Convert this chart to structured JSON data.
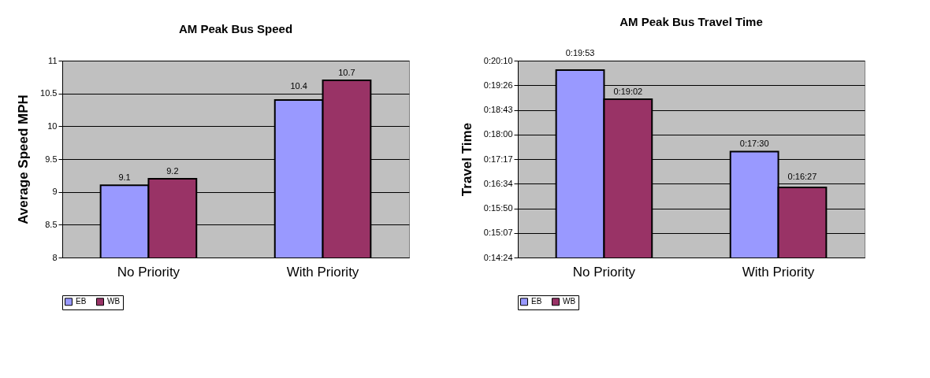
{
  "chart_data": [
    {
      "type": "bar",
      "title": "AM Peak Bus Speed",
      "ylabel": "Average Speed MPH",
      "categories": [
        "No Priority",
        "With Priority"
      ],
      "series": [
        {
          "name": "EB",
          "color": "#9999ff",
          "values": [
            9.1,
            10.4
          ]
        },
        {
          "name": "WB",
          "color": "#993366",
          "values": [
            9.2,
            10.7
          ]
        }
      ],
      "ylim": [
        8,
        11
      ],
      "yticks": [
        8,
        8.5,
        9,
        9.5,
        10,
        10.5,
        11
      ],
      "grid": "y",
      "legend": "bottom",
      "data_labels": true
    },
    {
      "type": "bar",
      "title": "AM Peak Bus Travel Time",
      "ylabel": "Travel Time",
      "categories": [
        "No Priority",
        "With Priority"
      ],
      "series": [
        {
          "name": "EB",
          "color": "#9999ff",
          "values": [
            19.8833,
            17.5
          ],
          "value_labels": [
            "0:19:53",
            "0:17:30"
          ]
        },
        {
          "name": "WB",
          "color": "#993366",
          "values": [
            19.0333,
            16.45
          ],
          "value_labels": [
            "0:19:02",
            "0:16:27"
          ]
        }
      ],
      "ylim": [
        14.4,
        20.16
      ],
      "yticks": [
        {
          "value": 14.4,
          "label": "0:14:24"
        },
        {
          "value": 15.12,
          "label": "0:15:07"
        },
        {
          "value": 15.84,
          "label": "0:15:50"
        },
        {
          "value": 16.56,
          "label": "0:16:34"
        },
        {
          "value": 17.28,
          "label": "0:17:17"
        },
        {
          "value": 18.0,
          "label": "0:18:00"
        },
        {
          "value": 18.72,
          "label": "0:18:43"
        },
        {
          "value": 19.44,
          "label": "0:19:26"
        },
        {
          "value": 20.16,
          "label": "0:20:10"
        }
      ],
      "grid": "y",
      "legend": "bottom"
    }
  ]
}
